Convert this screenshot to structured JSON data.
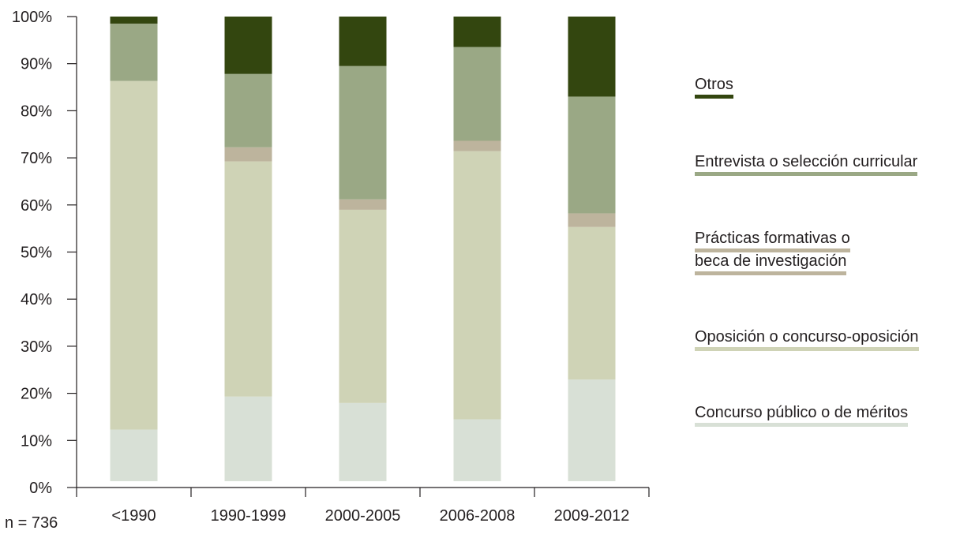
{
  "chart_data": {
    "type": "bar",
    "stacked": true,
    "categories": [
      "<1990",
      "1990-1999",
      "2000-2005",
      "2006-2008",
      "2009-2012"
    ],
    "series": [
      {
        "name": "Concurso público o de méritos",
        "color": "#d8e0d6",
        "values": [
          11,
          18,
          16.6,
          13.2,
          21.6
        ]
      },
      {
        "name": "Oposición o concurso-oposición",
        "color": "#cfd3b6",
        "values": [
          74.2,
          50,
          41,
          57.2,
          32.4
        ]
      },
      {
        "name": "Prácticas formativas o beca de investigación",
        "color": "#bdb49d",
        "values": [
          0,
          3,
          2.2,
          2.2,
          2.9
        ]
      },
      {
        "name": "Entrevista o selección curricular",
        "color": "#9aa885",
        "values": [
          12.2,
          15.6,
          28.3,
          20,
          24.8
        ]
      },
      {
        "name": "Otros",
        "color": "#33460f",
        "values": [
          1.5,
          12.2,
          10.5,
          6.5,
          17
        ]
      }
    ],
    "ylim": [
      0,
      100
    ],
    "yticks": [
      "0%",
      "10%",
      "20%",
      "30%",
      "40%",
      "50%",
      "60%",
      "70%",
      "80%",
      "90%",
      "100%"
    ],
    "legend_position": "right",
    "grid": false
  },
  "legend": {
    "otros": [
      "Otros"
    ],
    "entrevista": [
      "Entrevista o selección curricular"
    ],
    "practicas": [
      "Prácticas formativas o",
      "beca de investigación"
    ],
    "oposicion": [
      "Oposición o concurso-oposición"
    ],
    "concurso": [
      "Concurso público o de méritos"
    ]
  },
  "note": "n = 736"
}
